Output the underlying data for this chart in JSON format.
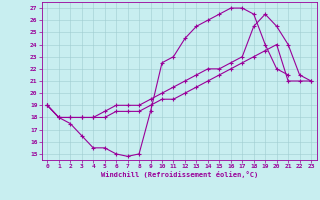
{
  "xlabel": "Windchill (Refroidissement éolien,°C)",
  "bg_color": "#c8eef0",
  "line_color": "#990099",
  "grid_color": "#a0ccd0",
  "xlim": [
    -0.5,
    23.5
  ],
  "ylim": [
    14.5,
    27.5
  ],
  "yticks": [
    15,
    16,
    17,
    18,
    19,
    20,
    21,
    22,
    23,
    24,
    25,
    26,
    27
  ],
  "xticks": [
    0,
    1,
    2,
    3,
    4,
    5,
    6,
    7,
    8,
    9,
    10,
    11,
    12,
    13,
    14,
    15,
    16,
    17,
    18,
    19,
    20,
    21,
    22,
    23
  ],
  "curve1_x": [
    0,
    1,
    2,
    3,
    4,
    5,
    6,
    7,
    8,
    9,
    10,
    11,
    12,
    13,
    14,
    15,
    16,
    17,
    18,
    19,
    20,
    21,
    22,
    23
  ],
  "curve1_y": [
    19,
    18,
    17.5,
    16.5,
    15.5,
    15.5,
    15,
    14.8,
    15,
    18.5,
    22.5,
    23,
    24.5,
    25.5,
    26.0,
    26.5,
    27.0,
    27.0,
    26.5,
    24.0,
    22.0,
    21.5
  ],
  "curve1_x_trim": [
    0,
    1,
    2,
    3,
    4,
    5,
    6,
    7,
    8,
    9,
    10,
    11,
    12,
    13,
    14,
    15,
    16,
    17,
    18,
    19,
    20,
    21
  ],
  "curve2_x": [
    0,
    1,
    2,
    3,
    4,
    5,
    6,
    7,
    8,
    9,
    10,
    11,
    12,
    13,
    14,
    15,
    16,
    17,
    18,
    19,
    20,
    21,
    22,
    23
  ],
  "curve2_y": [
    19,
    18,
    18,
    18,
    18,
    18.5,
    19,
    19,
    19,
    19.5,
    20,
    20.5,
    21,
    21.5,
    22,
    22,
    22.5,
    23.0,
    25.5,
    26.5,
    25.5,
    24.0,
    21.5,
    21.0
  ],
  "curve3_x": [
    0,
    1,
    2,
    3,
    4,
    5,
    6,
    7,
    8,
    9,
    10,
    11,
    12,
    13,
    14,
    15,
    16,
    17,
    18,
    19,
    20,
    21,
    22,
    23
  ],
  "curve3_y": [
    19,
    18,
    18,
    18,
    18,
    18,
    18.5,
    18.5,
    18.5,
    19,
    19.5,
    19.5,
    20,
    20.5,
    21,
    21.5,
    22,
    22.5,
    23.0,
    23.5,
    24.0,
    21.0,
    21.0,
    21.0
  ]
}
